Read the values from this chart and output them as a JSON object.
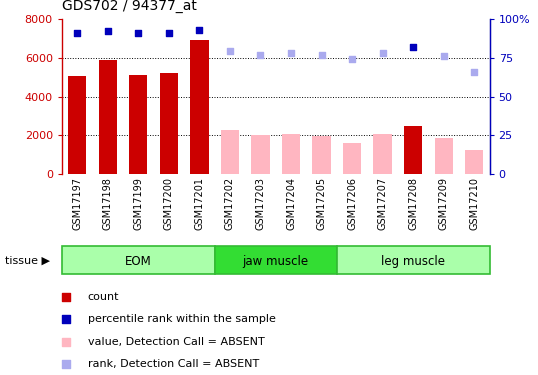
{
  "title": "GDS702 / 94377_at",
  "samples": [
    "GSM17197",
    "GSM17198",
    "GSM17199",
    "GSM17200",
    "GSM17201",
    "GSM17202",
    "GSM17203",
    "GSM17204",
    "GSM17205",
    "GSM17206",
    "GSM17207",
    "GSM17208",
    "GSM17209",
    "GSM17210"
  ],
  "bar_values": [
    5050,
    5900,
    5100,
    5200,
    6900,
    2300,
    2000,
    2100,
    1950,
    1600,
    2050,
    2500,
    1850,
    1250
  ],
  "bar_absent": [
    false,
    false,
    false,
    false,
    false,
    true,
    true,
    true,
    true,
    true,
    true,
    false,
    true,
    true
  ],
  "rank_values": [
    91,
    92,
    91,
    91,
    93,
    79,
    77,
    78,
    77,
    74,
    78,
    82,
    76,
    66
  ],
  "rank_absent": [
    false,
    false,
    false,
    false,
    false,
    true,
    true,
    true,
    true,
    true,
    true,
    false,
    true,
    true
  ],
  "ylim_left": [
    0,
    8000
  ],
  "ylim_right": [
    0,
    100
  ],
  "yticks_left": [
    0,
    2000,
    4000,
    6000,
    8000
  ],
  "yticks_right": [
    0,
    25,
    50,
    75,
    100
  ],
  "groups": [
    {
      "label": "EOM",
      "start": 0,
      "end": 5,
      "color": "#AAFFAA",
      "border": "#33BB33"
    },
    {
      "label": "jaw muscle",
      "start": 5,
      "end": 9,
      "color": "#33DD33",
      "border": "#33BB33"
    },
    {
      "label": "leg muscle",
      "start": 9,
      "end": 14,
      "color": "#AAFFAA",
      "border": "#33BB33"
    }
  ],
  "bar_color_present": "#CC0000",
  "bar_color_absent": "#FFB6C1",
  "rank_color_present": "#0000BB",
  "rank_color_absent": "#AAAAEE",
  "tick_area_color": "#CCCCCC",
  "legend_items": [
    {
      "label": "count",
      "color": "#CC0000"
    },
    {
      "label": "percentile rank within the sample",
      "color": "#0000BB"
    },
    {
      "label": "value, Detection Call = ABSENT",
      "color": "#FFB6C1"
    },
    {
      "label": "rank, Detection Call = ABSENT",
      "color": "#AAAAEE"
    }
  ]
}
